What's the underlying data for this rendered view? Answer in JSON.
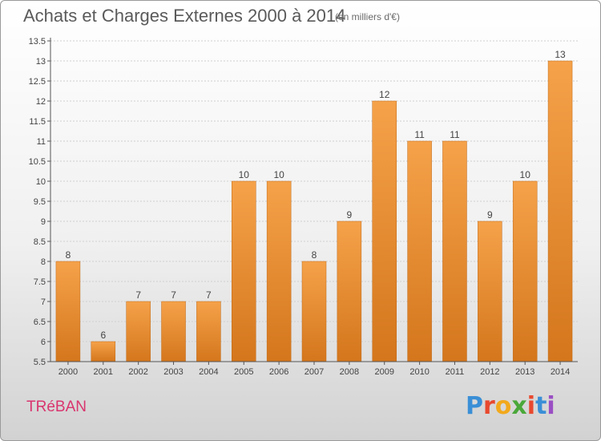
{
  "header": {
    "title": "Achats et Charges Externes 2000 à 2014",
    "unit": "(en milliers d'€)"
  },
  "footer": {
    "town": "TRéBAN",
    "brand": "Proxiti",
    "brand_letters": [
      "P",
      "r",
      "o",
      "x",
      "i",
      "t",
      "i"
    ],
    "brand_colors": [
      "#3a8fd6",
      "#e8492e",
      "#f2a91c",
      "#4aa83a",
      "#e8492e",
      "#3a8fd6",
      "#9a4fc3"
    ]
  },
  "chart_data": {
    "type": "bar",
    "categories": [
      "2000",
      "2001",
      "2002",
      "2003",
      "2004",
      "2005",
      "2006",
      "2007",
      "2008",
      "2009",
      "2010",
      "2011",
      "2012",
      "2013",
      "2014"
    ],
    "values": [
      8,
      6,
      7,
      7,
      7,
      10,
      10,
      8,
      9,
      12,
      11,
      11,
      9,
      10,
      13
    ],
    "data_labels": [
      "8",
      "6",
      "7",
      "7",
      "7",
      "10",
      "10",
      "8",
      "9",
      "12",
      "11",
      "11",
      "9",
      "10",
      "13"
    ],
    "ylim": [
      5.5,
      13.5
    ],
    "yticks": [
      "5.5",
      "6",
      "6.5",
      "7",
      "7.5",
      "8",
      "8.5",
      "9",
      "9.5",
      "10",
      "10.5",
      "11",
      "11.5",
      "12",
      "12.5",
      "13",
      "13.5"
    ],
    "grid": true,
    "title": "Achats et Charges Externes 2000 à 2014",
    "xlabel": "",
    "ylabel": "",
    "colors": {
      "bar_top": "#f5a24a",
      "bar_bottom": "#d4761c",
      "grid": "#cfcfcf",
      "axis": "#555555"
    }
  }
}
